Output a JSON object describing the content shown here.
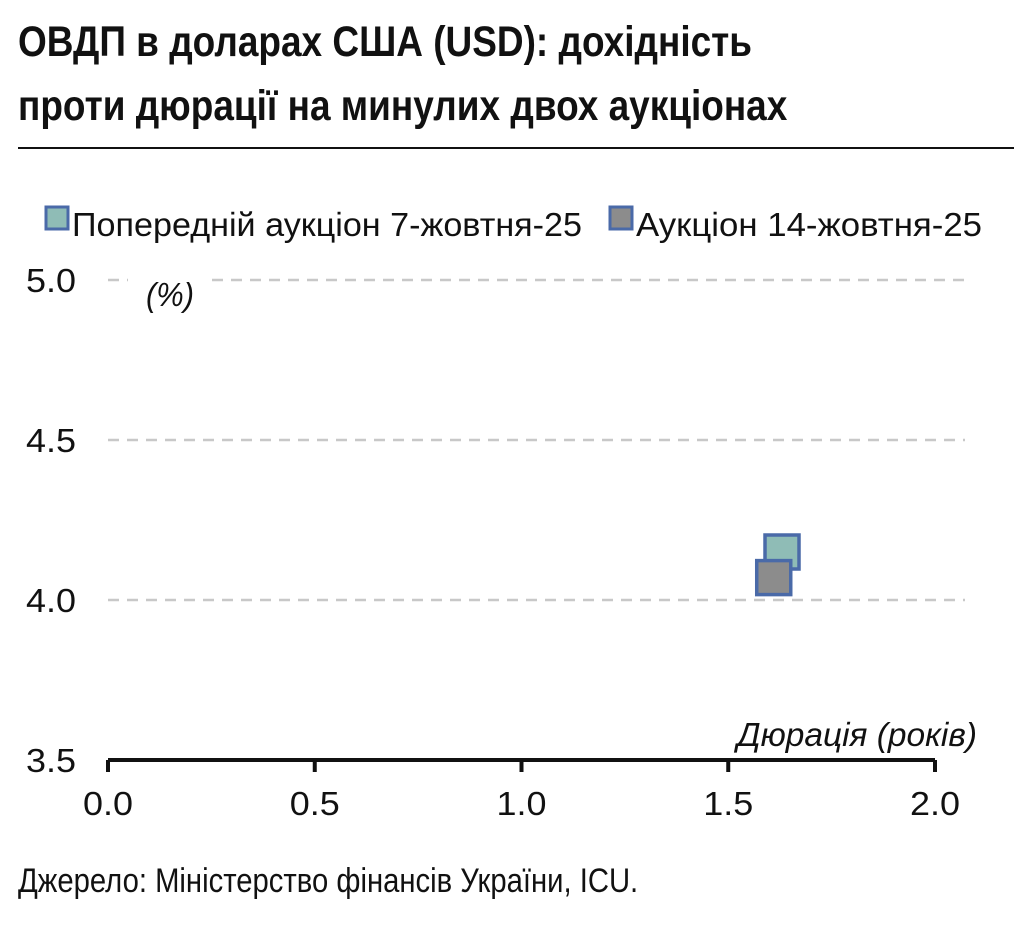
{
  "title_line1": "ОВДП в доларах США (USD): дохідність",
  "title_line2": "проти дюрації на минулих двох аукціонах",
  "source": "Джерело: Міністерство фінансів України, ICU.",
  "chart_data": {
    "type": "scatter",
    "xlabel": "Дюрація (років)",
    "ylabel": "(%)",
    "xlim": [
      0.0,
      2.0
    ],
    "ylim": [
      3.5,
      5.0
    ],
    "x_ticks": [
      "0.0",
      "0.5",
      "1.0",
      "1.5",
      "2.0"
    ],
    "y_ticks": [
      "5.0",
      "4.5",
      "4.0",
      "3.5"
    ],
    "grid": "horizontal dashed",
    "legend_position": "top",
    "series": [
      {
        "name": "Попередній аукціон 7-жовтня-25",
        "color": "#8fbcb6",
        "border": "#4a6aa8",
        "points": [
          {
            "x": 1.63,
            "y": 4.15
          }
        ]
      },
      {
        "name": "Аукціон 14-жовтня-25",
        "color": "#8c8c8c",
        "border": "#4a6aa8",
        "points": [
          {
            "x": 1.61,
            "y": 4.07
          }
        ]
      }
    ]
  }
}
